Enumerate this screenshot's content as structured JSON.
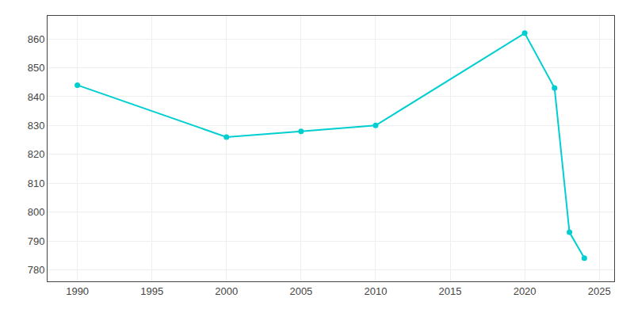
{
  "chart_data": {
    "type": "line",
    "x": [
      1990,
      2000,
      2005,
      2010,
      2020,
      2022,
      2023,
      2024
    ],
    "values": [
      844,
      826,
      828,
      830,
      862,
      843,
      793,
      784
    ],
    "color": "#00CED1",
    "marker": "circle",
    "xlim": [
      1988,
      2026
    ],
    "ylim": [
      776,
      868
    ],
    "xticks": [
      1990,
      1995,
      2000,
      2005,
      2010,
      2015,
      2020,
      2025
    ],
    "yticks": [
      780,
      790,
      800,
      810,
      820,
      830,
      840,
      850,
      860
    ],
    "grid": true
  }
}
